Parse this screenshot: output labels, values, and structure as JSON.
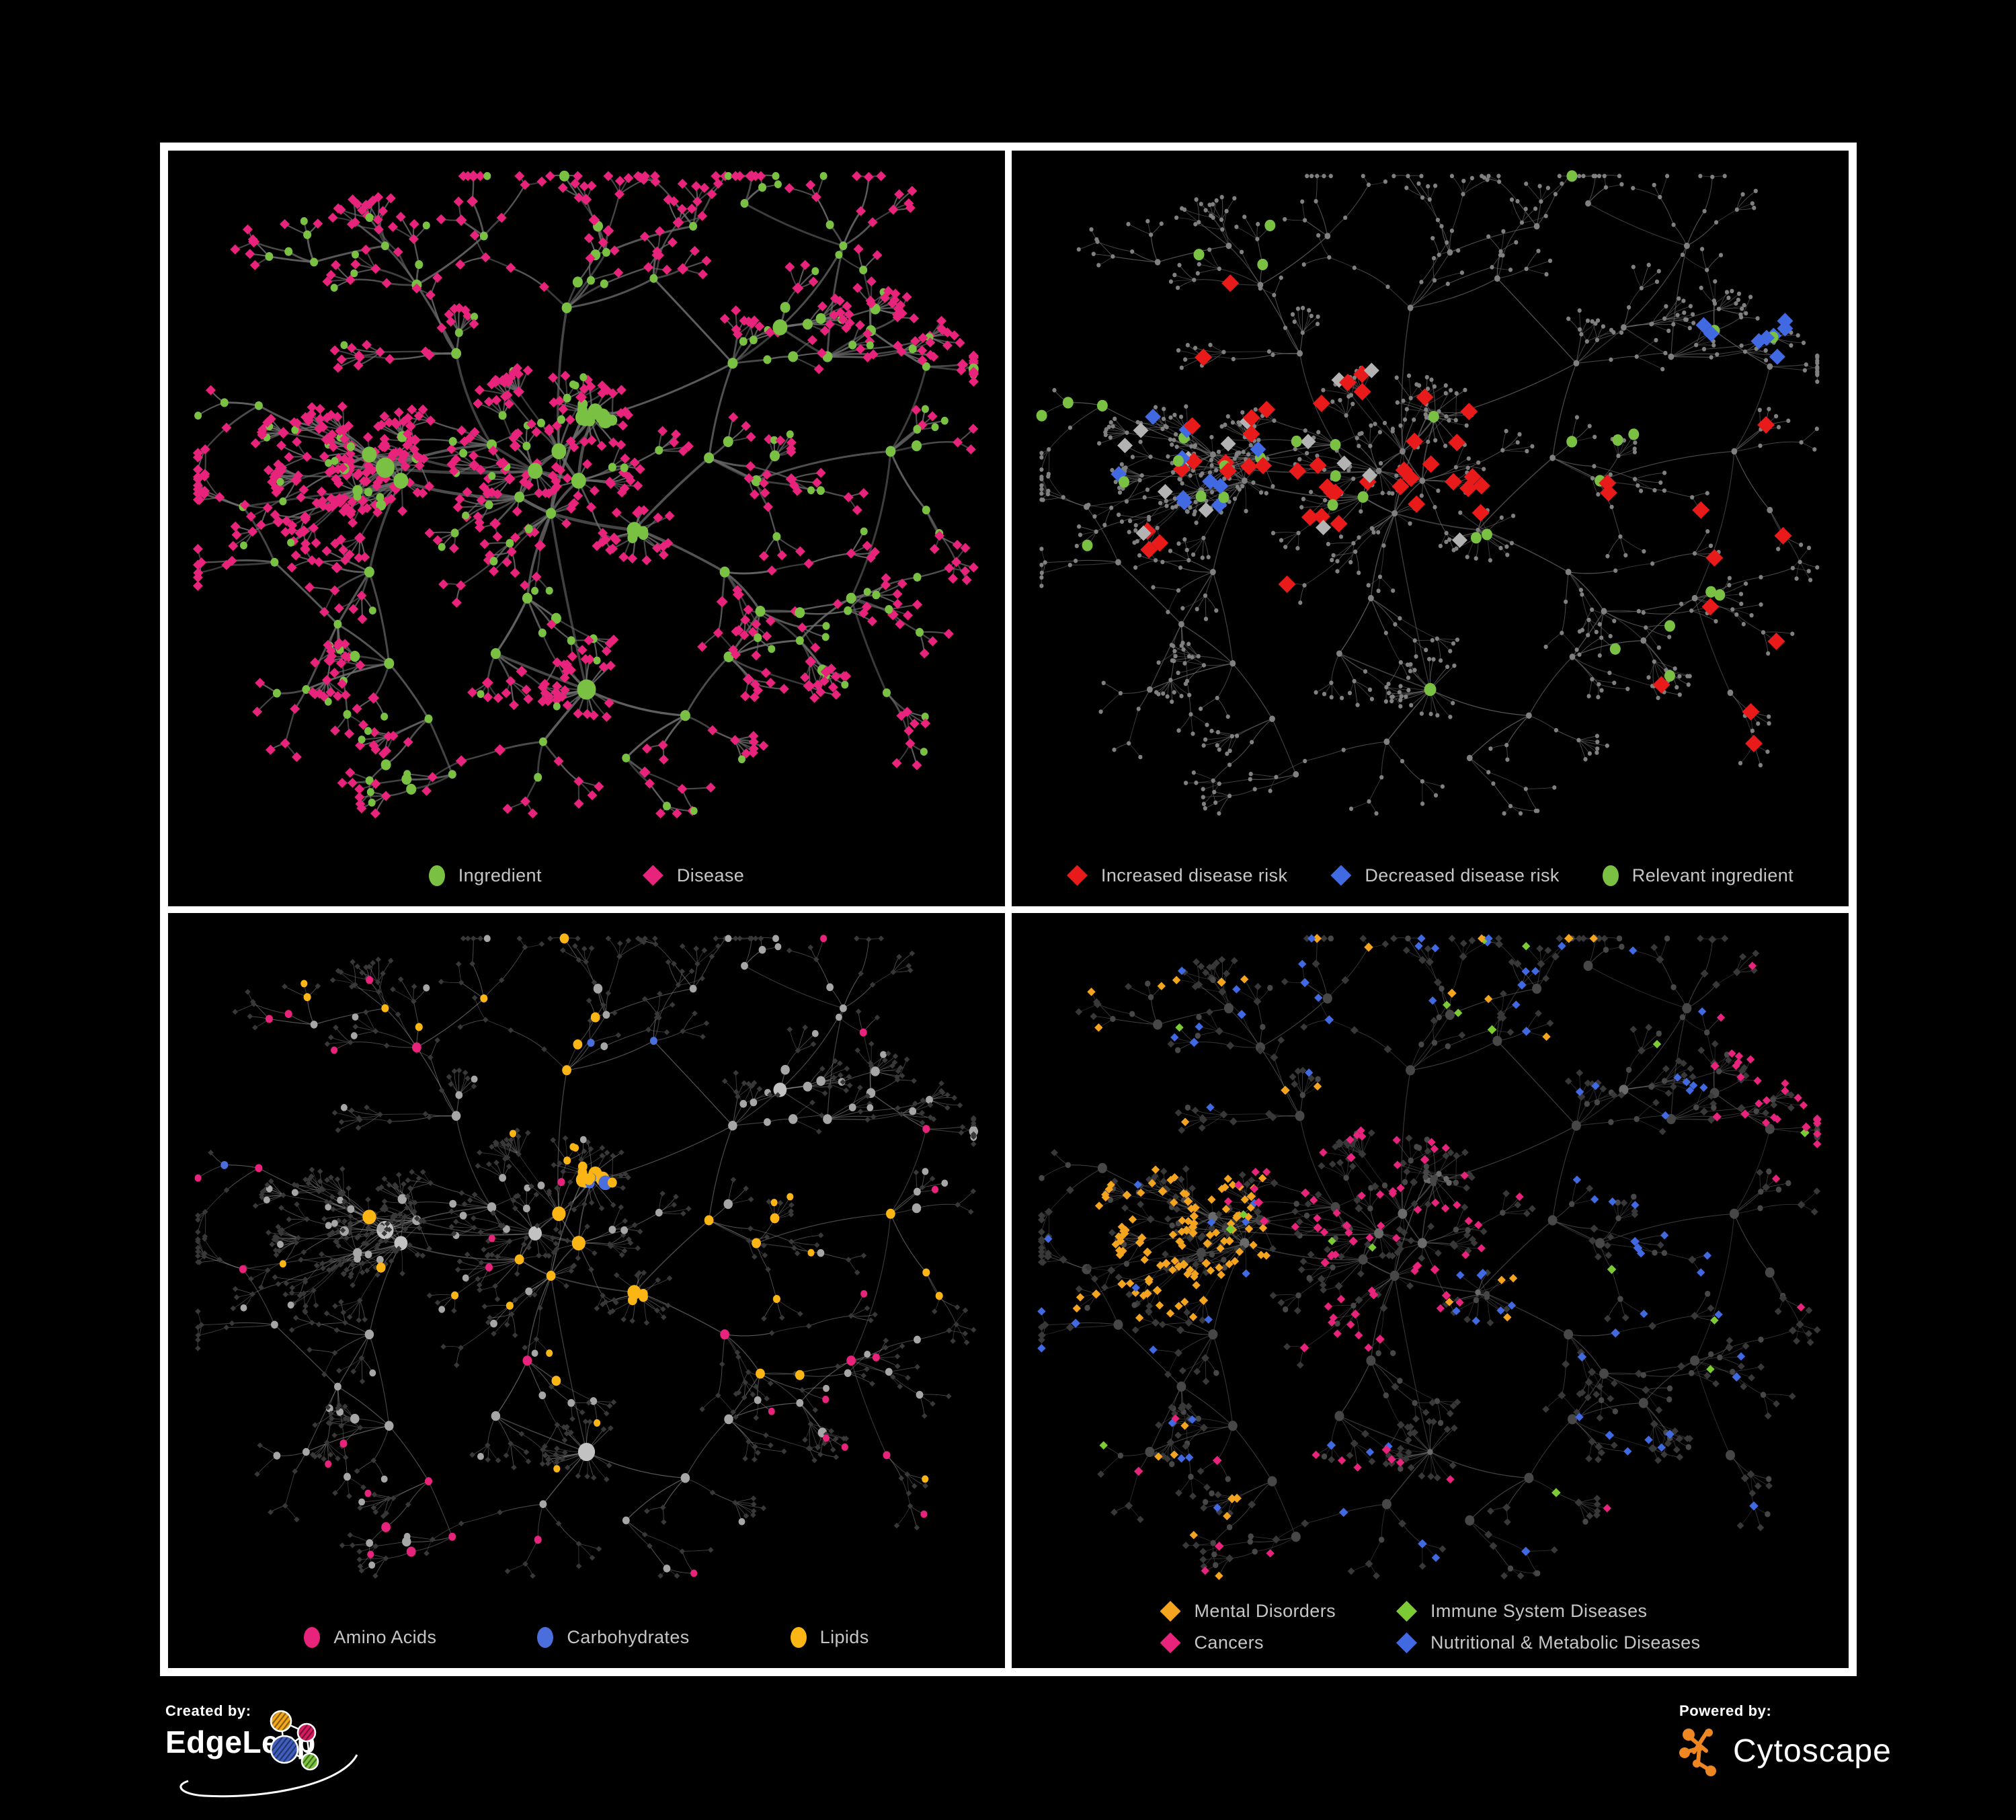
{
  "branding": {
    "created_by_label": "Created by:",
    "created_by_name": "EdgeLeap",
    "powered_by_label": "Powered by:",
    "powered_by_name": "Cytoscape",
    "cytoscape_orange": "#EE8722",
    "edgeleap_logo_colors": [
      "#F2A71D",
      "#D81B60",
      "#3F5EC0",
      "#7CC63F"
    ]
  },
  "colors": {
    "background": "#000000",
    "panel_background": "#000000",
    "panel_border": "#FFFFFF",
    "edge_gray": "#6C6C6C",
    "legend_text": "#C6C6C6",
    "ingredient_green": "#7AC143",
    "disease_pink": "#E8237B",
    "risk_red": "#E81A1A",
    "risk_blue": "#4169E1",
    "neutral_gray_diamond": "#B3B3B3",
    "amino_pink": "#E8237B",
    "carb_blue": "#4A6EDB",
    "lipid_yellow": "#FBB515",
    "mental_orange": "#F5A41F",
    "immune_green": "#7CCB34",
    "cancer_pink": "#E8237B",
    "metabolic_blue": "#4169E1",
    "dim_node_gray": "#808080",
    "dark_diamond": "#383838",
    "gray_circle": "#A6A6A6"
  },
  "panels": [
    {
      "name": "ingredient-disease-network",
      "legend": [
        {
          "label": "Ingredient",
          "shape": "ellipse",
          "color": "#7AC143"
        },
        {
          "label": "Disease",
          "shape": "diamond",
          "color": "#E8237B"
        }
      ]
    },
    {
      "name": "disease-risk-network",
      "legend": [
        {
          "label": "Increased disease risk",
          "shape": "diamond",
          "color": "#E81A1A"
        },
        {
          "label": "Decreased disease risk",
          "shape": "diamond",
          "color": "#4169E1"
        },
        {
          "label": "Relevant ingredient",
          "shape": "ellipse",
          "color": "#7AC143"
        }
      ]
    },
    {
      "name": "nutrient-class-network",
      "legend": [
        {
          "label": "Amino Acids",
          "shape": "ellipse",
          "color": "#E8237B"
        },
        {
          "label": "Carbohydrates",
          "shape": "ellipse",
          "color": "#4A6EDB"
        },
        {
          "label": "Lipids",
          "shape": "ellipse",
          "color": "#FBB515"
        }
      ]
    },
    {
      "name": "disease-class-network",
      "legend": [
        {
          "label": "Mental Disorders",
          "shape": "diamond",
          "color": "#F5A41F"
        },
        {
          "label": "Immune System Diseases",
          "shape": "diamond",
          "color": "#7CCB34"
        },
        {
          "label": "Cancers",
          "shape": "diamond",
          "color": "#E8237B"
        },
        {
          "label": "Nutritional & Metabolic Diseases",
          "shape": "diamond",
          "color": "#4169E1"
        }
      ]
    }
  ]
}
